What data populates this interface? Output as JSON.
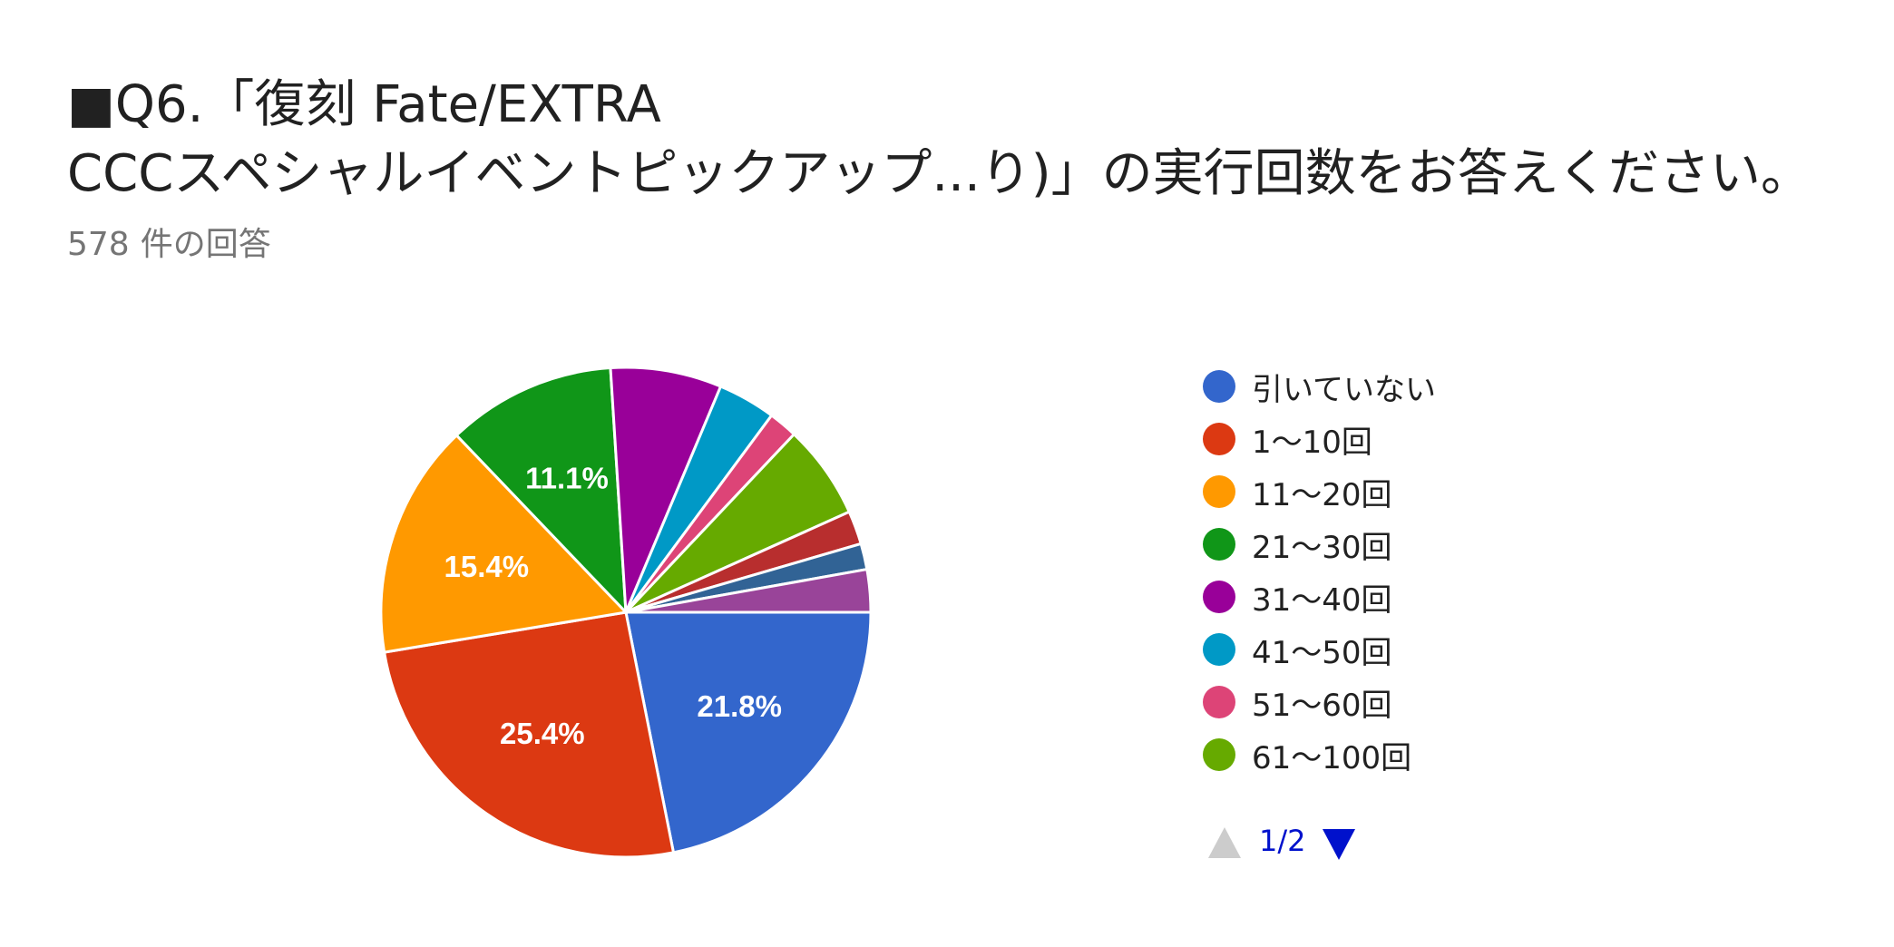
{
  "title": {
    "line1": "■Q6.「復刻 Fate/EXTRA",
    "line2": "CCCスペシャルイベントピックアップ...り)」の実行回数をお答えください。"
  },
  "response_count": {
    "number": "578",
    "unit": "件の回答"
  },
  "pager": {
    "text": "1/2"
  },
  "chart_data": {
    "type": "pie",
    "title": "■Q6.「復刻 Fate/EXTRA CCCスペシャルイベントピックアップ...り)」の実行回数をお答えください。",
    "total_responses": 578,
    "legend_position": "right",
    "legend_page": "1/2",
    "slices": [
      {
        "label": "引いていない",
        "value": 21.8,
        "color": "#3366cc",
        "show_label": true
      },
      {
        "label": "1〜10回",
        "value": 25.4,
        "color": "#dc3912",
        "show_label": true
      },
      {
        "label": "11〜20回",
        "value": 15.4,
        "color": "#ff9900",
        "show_label": true
      },
      {
        "label": "21〜30回",
        "value": 11.1,
        "color": "#109618",
        "show_label": true
      },
      {
        "label": "31〜40回",
        "value": 7.3,
        "color": "#990099",
        "show_label": false
      },
      {
        "label": "41〜50回",
        "value": 3.8,
        "color": "#0099c6",
        "show_label": false
      },
      {
        "label": "51〜60回",
        "value": 1.9,
        "color": "#dd4477",
        "show_label": false
      },
      {
        "label": "61〜100回",
        "value": 6.2,
        "color": "#66aa00",
        "show_label": false
      },
      {
        "label": "",
        "value": 2.2,
        "color": "#b82e2e",
        "show_label": false
      },
      {
        "label": "",
        "value": 1.7,
        "color": "#316395",
        "show_label": false
      },
      {
        "label": "",
        "value": 2.8,
        "color": "#994499",
        "show_label": false
      }
    ]
  }
}
